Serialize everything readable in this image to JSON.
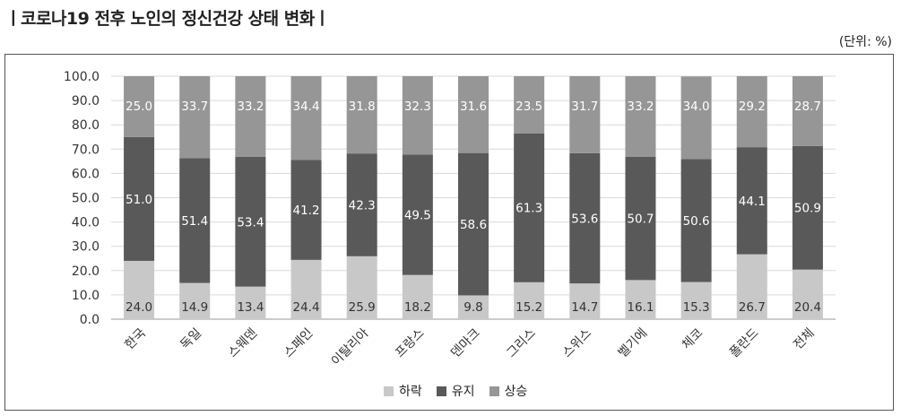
{
  "title": "ㅣ코로나19 전후 노인의 정신건강 상태 변화ㅣ",
  "unit": "(단위:  %)",
  "colors": {
    "down": "#c8c8c8",
    "keep": "#595959",
    "up": "#969696"
  },
  "chart_data": {
    "type": "bar",
    "stacked": true,
    "categories": [
      "한국",
      "독일",
      "스웨덴",
      "스페인",
      "이탈리아",
      "프랑스",
      "덴마크",
      "그리스",
      "스위스",
      "벨기에",
      "체코",
      "폴란드",
      "전체"
    ],
    "series": [
      {
        "name": "하락",
        "values": [
          24.0,
          14.9,
          13.4,
          24.4,
          25.9,
          18.2,
          9.8,
          15.2,
          14.7,
          16.1,
          15.3,
          26.7,
          20.4
        ]
      },
      {
        "name": "유지",
        "values": [
          51.0,
          51.4,
          53.4,
          41.2,
          42.3,
          49.5,
          58.6,
          61.3,
          53.6,
          50.7,
          50.6,
          44.1,
          50.9
        ]
      },
      {
        "name": "상승",
        "values": [
          25.0,
          33.7,
          33.2,
          34.4,
          31.8,
          32.3,
          31.6,
          23.5,
          31.7,
          33.2,
          34.0,
          29.2,
          28.7
        ]
      }
    ],
    "ylim": [
      0,
      100
    ],
    "yticks": [
      "0.0",
      "10.0",
      "20.0",
      "30.0",
      "40.0",
      "50.0",
      "60.0",
      "70.0",
      "80.0",
      "90.0",
      "100.0"
    ],
    "grid": true,
    "legend_position": "bottom"
  }
}
